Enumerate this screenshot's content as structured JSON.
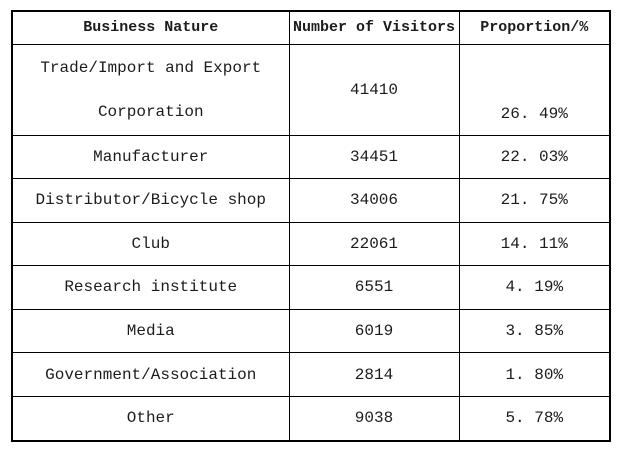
{
  "chart_data": {
    "type": "table",
    "title": "",
    "columns": [
      "Business Nature",
      "Number of Visitors",
      "Proportion/%"
    ],
    "rows": [
      [
        "Trade/Import and Export Corporation",
        41410,
        26.49
      ],
      [
        "Manufacturer",
        34451,
        22.03
      ],
      [
        "Distributor/Bicycle shop",
        34006,
        21.75
      ],
      [
        "Club",
        22061,
        14.11
      ],
      [
        "Research institute",
        6551,
        4.19
      ],
      [
        "Media",
        6019,
        3.85
      ],
      [
        "Government/Association",
        2814,
        1.8
      ],
      [
        "Other",
        9038,
        5.78
      ]
    ]
  },
  "table": {
    "headers": {
      "business_nature": "Business Nature",
      "visitors": "Number of Visitors",
      "proportion": "Proportion/%"
    },
    "rows": [
      {
        "name_line1": "Trade/Import and Export",
        "name_line2": "Corporation",
        "visitors": "41410",
        "proportion": "26. 49%"
      },
      {
        "name": "Manufacturer",
        "visitors": "34451",
        "proportion": "22. 03%"
      },
      {
        "name": "Distributor/Bicycle shop",
        "visitors": "34006",
        "proportion": "21. 75%"
      },
      {
        "name": "Club",
        "visitors": "22061",
        "proportion": "14. 11%"
      },
      {
        "name": "Research institute",
        "visitors": "6551",
        "proportion": "4. 19%"
      },
      {
        "name": "Media",
        "visitors": "6019",
        "proportion": "3. 85%"
      },
      {
        "name": "Government/Association",
        "visitors": "2814",
        "proportion": "1. 80%"
      },
      {
        "name": "Other",
        "visitors": "9038",
        "proportion": "5. 78%"
      }
    ]
  },
  "colors": {
    "border": "#000000",
    "text": "#1c1c1c",
    "background": "#ffffff"
  }
}
